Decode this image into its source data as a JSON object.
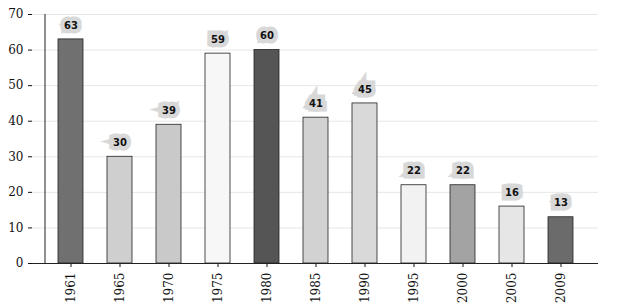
{
  "chart_data": {
    "type": "bar",
    "categories": [
      "1961",
      "1965",
      "1970",
      "1975",
      "1980",
      "1985",
      "1990",
      "1995",
      "2000",
      "2005",
      "2009"
    ],
    "values": [
      63,
      30,
      39,
      59,
      60,
      41,
      45,
      22,
      22,
      16,
      13
    ],
    "colors": [
      "#707070",
      "#cfcfcf",
      "#c9c9c9",
      "#f7f7f7",
      "#555555",
      "#d2d2d2",
      "#d9d9d9",
      "#f2f2f2",
      "#a3a3a3",
      "#e6e6e6",
      "#6b6b6b"
    ],
    "ylim": [
      0,
      70
    ],
    "yticks": [
      0,
      10,
      20,
      30,
      40,
      50,
      60,
      70
    ],
    "grid": true,
    "data_labels": true
  }
}
